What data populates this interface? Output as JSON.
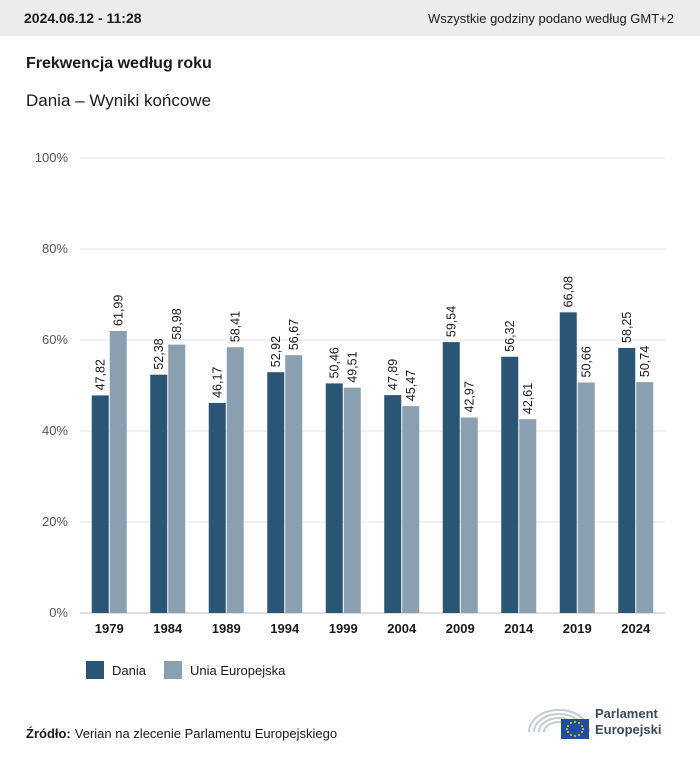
{
  "header": {
    "timestamp": "2024.06.12 - 11:28",
    "timezone_note": "Wszystkie godziny podano według GMT+2"
  },
  "title": "Frekwencja według roku",
  "subtitle": "Dania – Wyniki końcowe",
  "source": {
    "label": "Źródło:",
    "text": "Verian na zlecenie Parlamentu Europejskiego"
  },
  "logo": {
    "line1": "Parlament",
    "line2": "Europejski"
  },
  "colors": {
    "dania": "#2b5574",
    "eu": "#8aa0b1",
    "grid": "#e3e3e3",
    "axis_text": "#555555"
  },
  "chart_data": {
    "type": "bar",
    "categories": [
      "1979",
      "1984",
      "1989",
      "1994",
      "1999",
      "2004",
      "2009",
      "2014",
      "2019",
      "2024"
    ],
    "series": [
      {
        "name": "Dania",
        "values": [
          47.82,
          52.38,
          46.17,
          52.92,
          50.46,
          47.89,
          59.54,
          56.32,
          66.08,
          58.25
        ],
        "labels": [
          "47,82",
          "52,38",
          "46,17",
          "52,92",
          "50,46",
          "47,89",
          "59,54",
          "56,32",
          "66,08",
          "58,25"
        ]
      },
      {
        "name": "Unia Europejska",
        "values": [
          61.99,
          58.98,
          58.41,
          56.67,
          49.51,
          45.47,
          42.97,
          42.61,
          50.66,
          50.74
        ],
        "labels": [
          "61,99",
          "58,98",
          "58,41",
          "56,67",
          "49,51",
          "45,47",
          "42,97",
          "42,61",
          "50,66",
          "50,74"
        ]
      }
    ],
    "y_ticks": [
      "0%",
      "20%",
      "40%",
      "60%",
      "80%",
      "100%"
    ],
    "ylim": [
      0,
      100
    ],
    "grid": true,
    "legend_position": "bottom-left"
  }
}
